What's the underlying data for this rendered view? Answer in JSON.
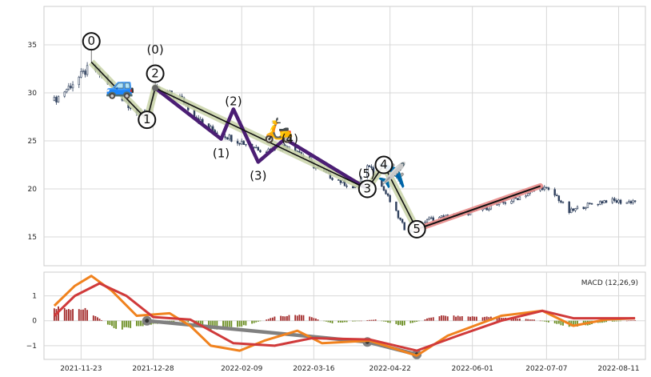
{
  "chart_data": [
    {
      "type": "candlestick",
      "panel": "price",
      "x_axis_type": "date",
      "xlim": [
        "2021-11-05",
        "2022-08-24"
      ],
      "ylim": [
        12,
        39
      ],
      "yticks": [
        15,
        20,
        25,
        30,
        35
      ],
      "xticks": [
        "2021-11-23",
        "2021-12-28",
        "2022-02-09",
        "2022-03-16",
        "2022-04-22",
        "2022-06-01",
        "2022-07-07",
        "2022-08-11"
      ],
      "grid": true,
      "colors": {
        "up": "#2e3f5c",
        "down": "#2e3f5c",
        "grid": "#d8d8d8"
      },
      "close_path": [
        {
          "x": "2021-11-10",
          "y": 29.2
        },
        {
          "x": "2021-11-18",
          "y": 30.8
        },
        {
          "x": "2021-11-28",
          "y": 32.8
        },
        {
          "x": "2021-12-10",
          "y": 30.2
        },
        {
          "x": "2021-12-22",
          "y": 27.5
        },
        {
          "x": "2021-12-29",
          "y": 30.3
        },
        {
          "x": "2022-01-10",
          "y": 29.5
        },
        {
          "x": "2022-01-22",
          "y": 26.5
        },
        {
          "x": "2022-02-05",
          "y": 25.2
        },
        {
          "x": "2022-02-20",
          "y": 24.0
        },
        {
          "x": "2022-03-05",
          "y": 24.6
        },
        {
          "x": "2022-03-18",
          "y": 22.0
        },
        {
          "x": "2022-04-05",
          "y": 20.0
        },
        {
          "x": "2022-04-12",
          "y": 22.5
        },
        {
          "x": "2022-04-20",
          "y": 19.5
        },
        {
          "x": "2022-04-30",
          "y": 15.5
        },
        {
          "x": "2022-05-10",
          "y": 16.8
        },
        {
          "x": "2022-05-30",
          "y": 17.5
        },
        {
          "x": "2022-06-20",
          "y": 18.8
        },
        {
          "x": "2022-07-05",
          "y": 20.2
        },
        {
          "x": "2022-07-12",
          "y": 19.2
        },
        {
          "x": "2022-07-18",
          "y": 17.6
        },
        {
          "x": "2022-07-25",
          "y": 18.2
        },
        {
          "x": "2022-08-05",
          "y": 18.8
        },
        {
          "x": "2022-08-15",
          "y": 18.6
        },
        {
          "x": "2022-08-19",
          "y": 18.8
        }
      ],
      "waves": {
        "primary": {
          "points": [
            {
              "x": "2021-11-28",
              "y": 33.2
            },
            {
              "x": "2021-12-25",
              "y": 27.2
            },
            {
              "x": "2021-12-29",
              "y": 30.5
            },
            {
              "x": "2022-04-11",
              "y": 20.0
            },
            {
              "x": "2022-04-19",
              "y": 22.5
            },
            {
              "x": "2022-05-05",
              "y": 15.8
            }
          ],
          "labels": [
            "0",
            "1",
            "2",
            "3",
            "4",
            "5"
          ],
          "color": "#111111",
          "halo": "#c9d4a8"
        },
        "secondary": {
          "points": [
            {
              "x": "2021-12-29",
              "y": 30.5
            },
            {
              "x": "2022-01-30",
              "y": 25.2
            },
            {
              "x": "2022-02-05",
              "y": 28.3
            },
            {
              "x": "2022-02-17",
              "y": 22.8
            },
            {
              "x": "2022-03-02",
              "y": 25.2
            },
            {
              "x": "2022-04-11",
              "y": 20.0
            }
          ],
          "labels": [
            "(0)",
            "(1)",
            "(2)",
            "(3)",
            "(4)",
            "(5)"
          ],
          "color": "#4b1e74"
        },
        "trend": {
          "points": [
            {
              "x": "2022-05-05",
              "y": 15.8
            },
            {
              "x": "2022-07-04",
              "y": 20.3
            }
          ],
          "color": "#111111",
          "halo": "#e88a88"
        }
      },
      "markers": [
        {
          "icon": "car-icon",
          "glyph": "🚙",
          "x": "2021-12-12",
          "y": 30.8
        },
        {
          "icon": "scooter-icon",
          "glyph": "🛵",
          "x": "2022-02-27",
          "y": 26.2
        },
        {
          "icon": "airplane-icon",
          "glyph": "✈️",
          "x": "2022-04-23",
          "y": 21.5
        }
      ]
    },
    {
      "type": "macd",
      "panel": "indicator",
      "legend": "MACD (12,26,9)",
      "legend_position": "top-right",
      "ylim": [
        -1.55,
        1.95
      ],
      "yticks": [
        -1,
        0,
        1
      ],
      "grid": true,
      "colors": {
        "macd": "#f0821e",
        "signal": "#d03a3a",
        "hist_pos": "#a32b2b",
        "hist_neg": "#6b8e23",
        "trend": "#808080"
      },
      "macd_line": [
        {
          "x": "2021-11-10",
          "y": 0.6
        },
        {
          "x": "2021-11-20",
          "y": 1.4
        },
        {
          "x": "2021-11-28",
          "y": 1.8
        },
        {
          "x": "2021-12-08",
          "y": 1.2
        },
        {
          "x": "2021-12-20",
          "y": 0.2
        },
        {
          "x": "2022-01-05",
          "y": 0.3
        },
        {
          "x": "2022-01-15",
          "y": -0.2
        },
        {
          "x": "2022-01-25",
          "y": -1.0
        },
        {
          "x": "2022-02-08",
          "y": -1.2
        },
        {
          "x": "2022-02-20",
          "y": -0.8
        },
        {
          "x": "2022-03-08",
          "y": -0.4
        },
        {
          "x": "2022-03-20",
          "y": -0.9
        },
        {
          "x": "2022-04-12",
          "y": -0.8
        },
        {
          "x": "2022-05-05",
          "y": -1.4
        },
        {
          "x": "2022-05-20",
          "y": -0.6
        },
        {
          "x": "2022-06-15",
          "y": 0.2
        },
        {
          "x": "2022-07-05",
          "y": 0.4
        },
        {
          "x": "2022-07-20",
          "y": -0.2
        },
        {
          "x": "2022-08-05",
          "y": 0.05
        },
        {
          "x": "2022-08-19",
          "y": 0.1
        }
      ],
      "signal_line": [
        {
          "x": "2021-11-10",
          "y": 0.2
        },
        {
          "x": "2021-11-20",
          "y": 1.0
        },
        {
          "x": "2021-12-02",
          "y": 1.5
        },
        {
          "x": "2021-12-15",
          "y": 1.0
        },
        {
          "x": "2021-12-28",
          "y": 0.15
        },
        {
          "x": "2022-01-15",
          "y": 0.05
        },
        {
          "x": "2022-02-05",
          "y": -0.9
        },
        {
          "x": "2022-02-25",
          "y": -1.0
        },
        {
          "x": "2022-03-15",
          "y": -0.7
        },
        {
          "x": "2022-04-12",
          "y": -0.75
        },
        {
          "x": "2022-05-05",
          "y": -1.2
        },
        {
          "x": "2022-05-25",
          "y": -0.6
        },
        {
          "x": "2022-06-15",
          "y": 0.0
        },
        {
          "x": "2022-07-05",
          "y": 0.4
        },
        {
          "x": "2022-07-20",
          "y": 0.1
        },
        {
          "x": "2022-08-19",
          "y": 0.1
        }
      ],
      "histogram_envelope": [
        {
          "x": "2021-11-10",
          "y": 0.55
        },
        {
          "x": "2021-11-25",
          "y": 0.45
        },
        {
          "x": "2021-12-10",
          "y": -0.35
        },
        {
          "x": "2021-12-22",
          "y": -0.2
        },
        {
          "x": "2022-01-12",
          "y": 0.0
        },
        {
          "x": "2022-01-25",
          "y": -0.35
        },
        {
          "x": "2022-02-10",
          "y": -0.2
        },
        {
          "x": "2022-02-25",
          "y": 0.15
        },
        {
          "x": "2022-03-10",
          "y": 0.25
        },
        {
          "x": "2022-03-25",
          "y": -0.1
        },
        {
          "x": "2022-04-15",
          "y": 0.05
        },
        {
          "x": "2022-04-28",
          "y": -0.2
        },
        {
          "x": "2022-05-15",
          "y": 0.2
        },
        {
          "x": "2022-06-10",
          "y": 0.15
        },
        {
          "x": "2022-07-01",
          "y": 0.05
        },
        {
          "x": "2022-07-20",
          "y": -0.25
        },
        {
          "x": "2022-08-05",
          "y": -0.05
        },
        {
          "x": "2022-08-19",
          "y": 0.02
        }
      ],
      "trend_line": [
        {
          "x": "2021-12-25",
          "y": 0.0
        },
        {
          "x": "2022-04-11",
          "y": -0.85
        },
        {
          "x": "2022-05-05",
          "y": -1.35
        }
      ]
    }
  ]
}
